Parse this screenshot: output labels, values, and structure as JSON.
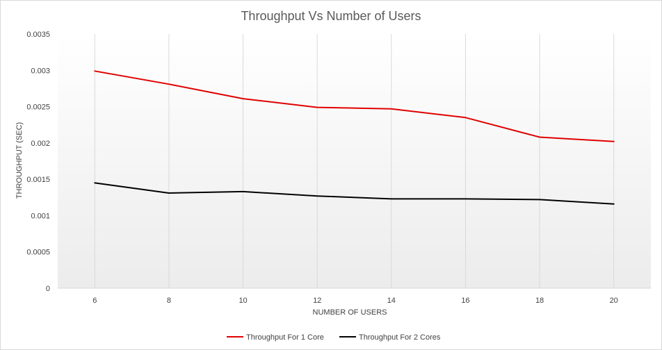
{
  "chart_data": {
    "type": "line",
    "title": "Throughput Vs Number  of Users",
    "xlabel": "NUMBER OF USERS",
    "ylabel": "THROUGHPUT (SEC)",
    "x": [
      6,
      8,
      10,
      12,
      14,
      16,
      18,
      20
    ],
    "x_tick_labels": [
      "6",
      "8",
      "10",
      "12",
      "14",
      "16",
      "18",
      "20"
    ],
    "ylim": [
      0,
      0.0035
    ],
    "y_ticks": [
      0,
      0.0005,
      0.001,
      0.0015,
      0.002,
      0.0025,
      0.003,
      0.0035
    ],
    "y_tick_labels": [
      "0",
      "0.0005",
      "0.001",
      "0.0015",
      "0.002",
      "0.0025",
      "0.003",
      "0.0035"
    ],
    "grid": "vertical",
    "legend_position": "bottom",
    "series": [
      {
        "name": "Throughput For 1 Core",
        "color": "#e00000",
        "values": [
          0.00299,
          0.00281,
          0.00261,
          0.00249,
          0.00247,
          0.00235,
          0.00208,
          0.00202
        ]
      },
      {
        "name": "Throughput For 2 Cores",
        "color": "#000000",
        "values": [
          0.00145,
          0.00131,
          0.00133,
          0.00127,
          0.00123,
          0.00123,
          0.00122,
          0.00116
        ]
      }
    ]
  }
}
